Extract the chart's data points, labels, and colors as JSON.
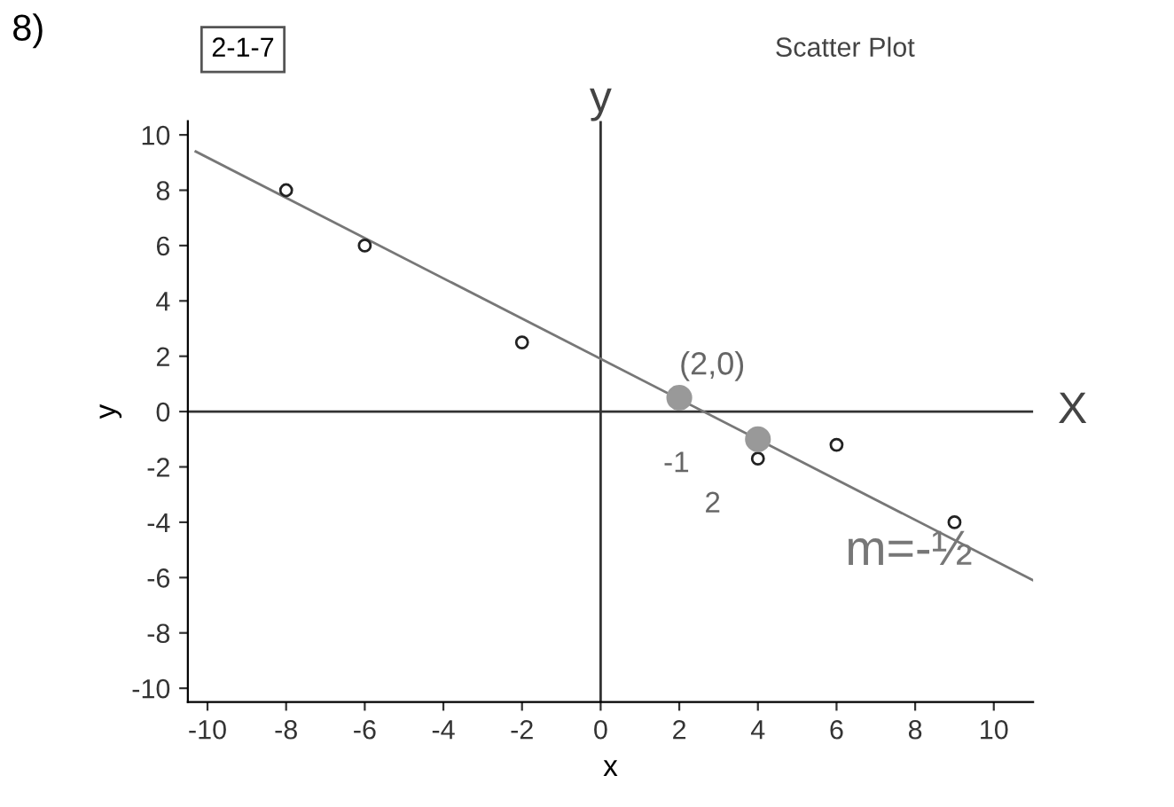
{
  "chart_data": {
    "type": "scatter",
    "xlabel": "x",
    "ylabel": "y",
    "series": [
      {
        "marker": "circle",
        "color": "#222222",
        "x": [
          -8,
          -6,
          -2,
          4,
          6,
          9
        ],
        "values": [
          8,
          6,
          2.5,
          -1.7,
          -1.2,
          -4
        ]
      },
      {
        "type": "line",
        "marker": "none",
        "color": "#777777",
        "x": [
          -10.3,
          11
        ],
        "values": [
          9.4,
          -6.1
        ]
      },
      {
        "marker": "circle",
        "color": "#999999",
        "x": [
          2,
          4
        ],
        "values": [
          0.5,
          -1
        ]
      }
    ],
    "xlim": [
      -10.5,
      11
    ],
    "ylim": [
      -10.5,
      10.5
    ],
    "xticks": [
      -10,
      -8,
      -6,
      -4,
      -2,
      0,
      2,
      4,
      6,
      8,
      10
    ],
    "yticks": [
      -10,
      -8,
      -6,
      -4,
      -2,
      0,
      2,
      4,
      6,
      8,
      10
    ],
    "ref_lines": [
      {
        "axis": "x",
        "value": 0,
        "label": "y",
        "color": "#333333"
      },
      {
        "axis": "y",
        "value": 0,
        "label": "X",
        "color": "#333333"
      }
    ],
    "annotations": [
      "8)",
      "2-1-7",
      "Scatter Plot",
      "m=-½",
      "-1",
      "2",
      {
        "text": "(2,0)",
        "x": 2,
        "y": 0.5
      }
    ],
    "grid": false,
    "legend": false
  }
}
